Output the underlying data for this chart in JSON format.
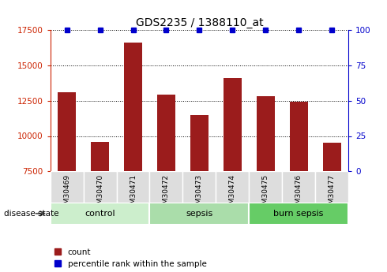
{
  "title": "GDS2235 / 1388110_at",
  "samples": [
    "GSM30469",
    "GSM30470",
    "GSM30471",
    "GSM30472",
    "GSM30473",
    "GSM30474",
    "GSM30475",
    "GSM30476",
    "GSM30477"
  ],
  "counts": [
    13100,
    9600,
    16600,
    12900,
    11500,
    14100,
    12800,
    12400,
    9500
  ],
  "percentile_ranks": [
    100,
    100,
    100,
    100,
    100,
    100,
    100,
    100,
    100
  ],
  "ylim_left": [
    7500,
    17500
  ],
  "ylim_right": [
    0,
    100
  ],
  "yticks_left": [
    7500,
    10000,
    12500,
    15000,
    17500
  ],
  "yticks_right": [
    0,
    25,
    50,
    75,
    100
  ],
  "bar_color": "#9B1C1C",
  "dot_color": "#0000CC",
  "groups": [
    {
      "label": "control",
      "indices": [
        0,
        1,
        2
      ],
      "color": "#CCEECC"
    },
    {
      "label": "sepsis",
      "indices": [
        3,
        4,
        5
      ],
      "color": "#AADDAA"
    },
    {
      "label": "burn sepsis",
      "indices": [
        6,
        7,
        8
      ],
      "color": "#66CC66"
    }
  ],
  "disease_state_label": "disease state",
  "legend_count_label": "count",
  "legend_percentile_label": "percentile rank within the sample",
  "sample_box_color": "#DDDDDD"
}
